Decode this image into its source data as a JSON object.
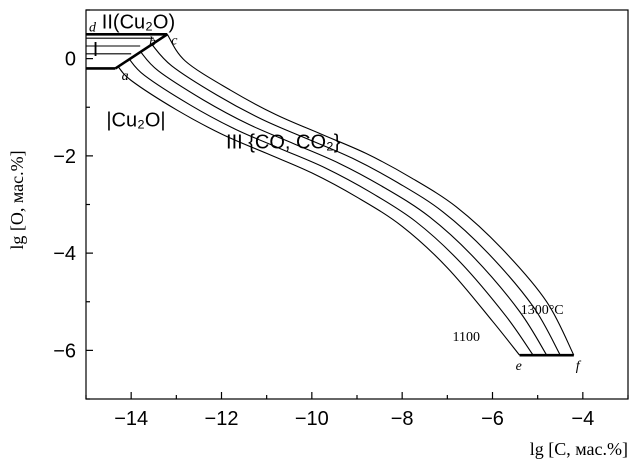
{
  "chart_data": {
    "type": "line",
    "xlabel": "lg [C, мас.%]",
    "ylabel": "lg [O, мас.%]",
    "xlim": [
      -15,
      -3
    ],
    "ylim": [
      -7,
      1
    ],
    "xticks": [
      -14,
      -12,
      -10,
      -8,
      -6,
      -4
    ],
    "yticks": [
      0,
      -2,
      -4,
      -6
    ],
    "x_tick_labels": [
      "−14",
      "−12",
      "−10",
      "−8",
      "−6",
      "−4"
    ],
    "y_tick_labels": [
      "0",
      "−2",
      "−4",
      "−6"
    ],
    "regions": [
      {
        "label": "II (Cu2O)",
        "display": "II(Cu₂O)"
      },
      {
        "label": "I",
        "display": "I"
      },
      {
        "label": "|Cu2O|",
        "display": "|Cu₂O|"
      },
      {
        "label": "III {CO, CO2}",
        "display": "III {CO, CO₂}"
      }
    ],
    "points": [
      {
        "label": "a",
        "x": -14.3,
        "y": -0.15
      },
      {
        "label": "b",
        "x": -13.65,
        "y": 0.3
      },
      {
        "label": "c",
        "x": -13.2,
        "y": 0.5
      },
      {
        "label": "d",
        "x": -15,
        "y": 0.5
      },
      {
        "label": "e",
        "x": -5.4,
        "y": -6.1
      },
      {
        "label": "f",
        "x": -4.2,
        "y": -6.1
      }
    ],
    "temperature_labels": [
      {
        "text": "1100",
        "attached_series": 0
      },
      {
        "text": "1300°C",
        "attached_series": 4
      }
    ],
    "series": [
      {
        "points": [
          [
            -14.3,
            -0.15
          ],
          [
            -14.0,
            -0.45
          ],
          [
            -13.0,
            -1.05
          ],
          [
            -12.0,
            -1.55
          ],
          [
            -11.0,
            -1.95
          ],
          [
            -10.0,
            -2.35
          ],
          [
            -9.0,
            -2.85
          ],
          [
            -8.0,
            -3.45
          ],
          [
            -7.0,
            -4.3
          ],
          [
            -6.0,
            -5.4
          ],
          [
            -5.4,
            -6.1
          ]
        ]
      },
      {
        "points": [
          [
            -14.05,
            0.0
          ],
          [
            -13.7,
            -0.35
          ],
          [
            -12.7,
            -0.95
          ],
          [
            -11.7,
            -1.45
          ],
          [
            -10.7,
            -1.85
          ],
          [
            -9.7,
            -2.25
          ],
          [
            -8.7,
            -2.75
          ],
          [
            -7.7,
            -3.35
          ],
          [
            -6.7,
            -4.2
          ],
          [
            -5.7,
            -5.3
          ],
          [
            -5.1,
            -6.1
          ]
        ]
      },
      {
        "points": [
          [
            -13.8,
            0.15
          ],
          [
            -13.4,
            -0.25
          ],
          [
            -12.4,
            -0.85
          ],
          [
            -11.4,
            -1.35
          ],
          [
            -10.4,
            -1.75
          ],
          [
            -9.4,
            -2.15
          ],
          [
            -8.4,
            -2.65
          ],
          [
            -7.4,
            -3.25
          ],
          [
            -6.4,
            -4.1
          ],
          [
            -5.4,
            -5.2
          ],
          [
            -4.8,
            -6.1
          ]
        ]
      },
      {
        "points": [
          [
            -13.55,
            0.3
          ],
          [
            -13.1,
            -0.15
          ],
          [
            -12.1,
            -0.75
          ],
          [
            -11.1,
            -1.25
          ],
          [
            -10.1,
            -1.65
          ],
          [
            -9.1,
            -2.05
          ],
          [
            -8.1,
            -2.55
          ],
          [
            -7.1,
            -3.15
          ],
          [
            -6.1,
            -4.0
          ],
          [
            -5.1,
            -5.1
          ],
          [
            -4.5,
            -6.1
          ]
        ]
      },
      {
        "points": [
          [
            -13.2,
            0.5
          ],
          [
            -12.8,
            -0.05
          ],
          [
            -11.8,
            -0.65
          ],
          [
            -10.8,
            -1.15
          ],
          [
            -9.8,
            -1.55
          ],
          [
            -8.8,
            -1.95
          ],
          [
            -7.8,
            -2.45
          ],
          [
            -6.8,
            -3.05
          ],
          [
            -5.8,
            -3.9
          ],
          [
            -4.8,
            -5.0
          ],
          [
            -4.2,
            -6.1
          ]
        ]
      }
    ],
    "boundaries": [
      {
        "points": [
          [
            -15,
            0.5
          ],
          [
            -13.2,
            0.5
          ]
        ],
        "style": "bold"
      },
      {
        "points": [
          [
            -15,
            -0.2
          ],
          [
            -14.35,
            -0.2
          ]
        ],
        "style": "bold"
      },
      {
        "points": [
          [
            -14.35,
            -0.2
          ],
          [
            -13.2,
            0.5
          ]
        ],
        "style": "bold"
      },
      {
        "points": [
          [
            -15,
            0.42
          ],
          [
            -13.5,
            0.42
          ]
        ],
        "style": "thin"
      },
      {
        "points": [
          [
            -15,
            0.26
          ],
          [
            -13.8,
            0.26
          ]
        ],
        "style": "thin"
      },
      {
        "points": [
          [
            -15,
            0.1
          ],
          [
            -14.0,
            0.1
          ]
        ],
        "style": "thin"
      },
      {
        "points": [
          [
            -5.4,
            -6.1
          ],
          [
            -4.2,
            -6.1
          ]
        ],
        "style": "bold"
      }
    ]
  }
}
